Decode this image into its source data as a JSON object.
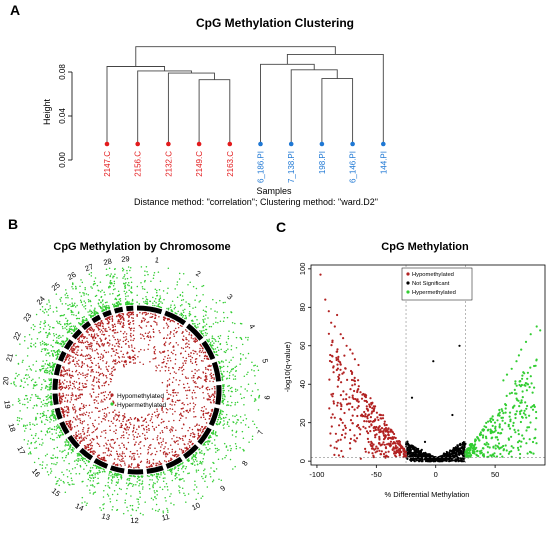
{
  "figure": {
    "panel_letters": [
      "A",
      "B",
      "C"
    ],
    "colors": {
      "hypo": "#b22222",
      "hyper": "#32cd32",
      "ns": "#000000",
      "sample_red": "#e31a1c",
      "sample_blue": "#1f78d4"
    }
  },
  "chart_data": [
    {
      "type": "dendrogram",
      "title": "CpG Methylation Clustering",
      "ylabel": "Height",
      "xlabel": "Samples",
      "subtitle": "Distance method: \"correlation\"; Clustering method: \"ward.D2\"",
      "ylim": [
        0,
        0.1
      ],
      "yticks": [
        "0.00",
        "0.04",
        "0.08"
      ],
      "leaves": [
        {
          "label": "2147.C",
          "color": "red"
        },
        {
          "label": "2156.C",
          "color": "red"
        },
        {
          "label": "2132.C",
          "color": "red"
        },
        {
          "label": "2149.C",
          "color": "red"
        },
        {
          "label": "2163.C",
          "color": "red"
        },
        {
          "label": "6_186.PI",
          "color": "blue"
        },
        {
          "label": "7_138.PI",
          "color": "blue"
        },
        {
          "label": "198.PI",
          "color": "blue"
        },
        {
          "label": "6_146.PI",
          "color": "blue"
        },
        {
          "label": "144.PI",
          "color": "blue"
        }
      ],
      "merges": [
        {
          "a": 3,
          "b": 4,
          "h": 0.073
        },
        {
          "a": 2,
          "b": -1,
          "h": 0.079
        },
        {
          "a": 1,
          "b": -2,
          "h": 0.081
        },
        {
          "a": 0,
          "b": -3,
          "h": 0.085
        },
        {
          "a": 7,
          "b": 8,
          "h": 0.074
        },
        {
          "a": 6,
          "b": -5,
          "h": 0.082
        },
        {
          "a": 5,
          "b": -6,
          "h": 0.087
        },
        {
          "a": -7,
          "b": 9,
          "h": 0.096
        },
        {
          "a": -4,
          "b": -8,
          "h": 0.103
        }
      ]
    },
    {
      "type": "circos-manhattan",
      "title": "CpG Methylation by Chromosome",
      "chromosomes": [
        "1",
        "2",
        "3",
        "4",
        "5",
        "6",
        "7",
        "8",
        "9",
        "10",
        "11",
        "12",
        "13",
        "14",
        "15",
        "16",
        "17",
        "18",
        "19",
        "20",
        "21",
        "22",
        "23",
        "24",
        "25",
        "26",
        "27",
        "28",
        "29"
      ],
      "legend": [
        "Hypomethylated",
        "Hypermethylated"
      ],
      "legend_placement": "center"
    },
    {
      "type": "scatter",
      "title": "CpG Methylation",
      "xlabel": "% Differential Methylation",
      "ylabel": "-log10(q-value)",
      "xlim": [
        -105,
        92
      ],
      "ylim": [
        -2,
        102
      ],
      "xticks": [
        -100,
        -50,
        0,
        50
      ],
      "yticks": [
        0,
        20,
        40,
        60,
        80,
        100
      ],
      "thresholds": {
        "x": [
          -25,
          25
        ],
        "y": 2
      },
      "legend": [
        "Hypomethylated",
        "Not Significant",
        "Hypermethylated"
      ],
      "legend_placement": "top-left",
      "points": {
        "hypo_extremes": [
          [
            -97,
            97
          ],
          [
            -93,
            84
          ],
          [
            -90,
            78
          ],
          [
            -88,
            72
          ],
          [
            -85,
            70
          ],
          [
            -83,
            76
          ],
          [
            -80,
            66
          ],
          [
            -78,
            64
          ],
          [
            -75,
            60
          ],
          [
            -72,
            58
          ],
          [
            -70,
            56
          ],
          [
            -68,
            53
          ],
          [
            -65,
            50
          ]
        ],
        "hyper_extremes": [
          [
            85,
            70
          ],
          [
            88,
            68
          ],
          [
            80,
            66
          ],
          [
            76,
            62
          ],
          [
            72,
            58
          ],
          [
            70,
            55
          ],
          [
            68,
            52
          ],
          [
            64,
            48
          ],
          [
            60,
            45
          ],
          [
            57,
            42
          ]
        ],
        "ns_extremes": [
          [
            20,
            60
          ],
          [
            -2,
            52
          ],
          [
            -20,
            33
          ],
          [
            14,
            24
          ],
          [
            -9,
            10
          ]
        ]
      }
    }
  ]
}
